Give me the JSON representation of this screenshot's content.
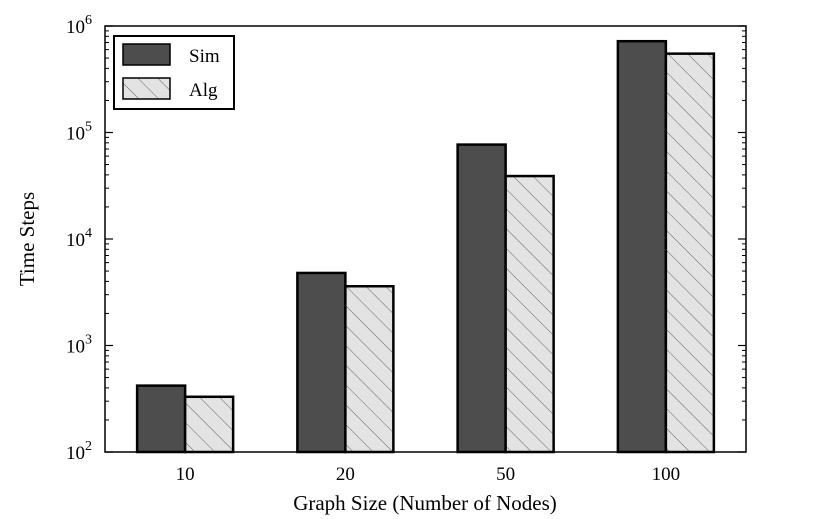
{
  "chart_data": {
    "type": "bar",
    "title": "",
    "xlabel": "Graph Size (Number of Nodes)",
    "ylabel": "Time Steps",
    "yscale": "log",
    "ylim": [
      100,
      1000000
    ],
    "yticks": [
      {
        "value": 100,
        "base": "10",
        "exp": "2"
      },
      {
        "value": 1000,
        "base": "10",
        "exp": "3"
      },
      {
        "value": 10000,
        "base": "10",
        "exp": "4"
      },
      {
        "value": 100000,
        "base": "10",
        "exp": "5"
      },
      {
        "value": 1000000,
        "base": "10",
        "exp": "6"
      }
    ],
    "categories": [
      "10",
      "20",
      "50",
      "100"
    ],
    "series": [
      {
        "name": "Sim",
        "values": [
          420,
          4800,
          77000,
          720000
        ],
        "color": "#4d4d4d",
        "pattern": "solid"
      },
      {
        "name": "Alg",
        "values": [
          330,
          3600,
          39000,
          550000
        ],
        "color": "#e3e3e3",
        "pattern": "hatch"
      }
    ],
    "legend": {
      "position": "top-left"
    }
  }
}
